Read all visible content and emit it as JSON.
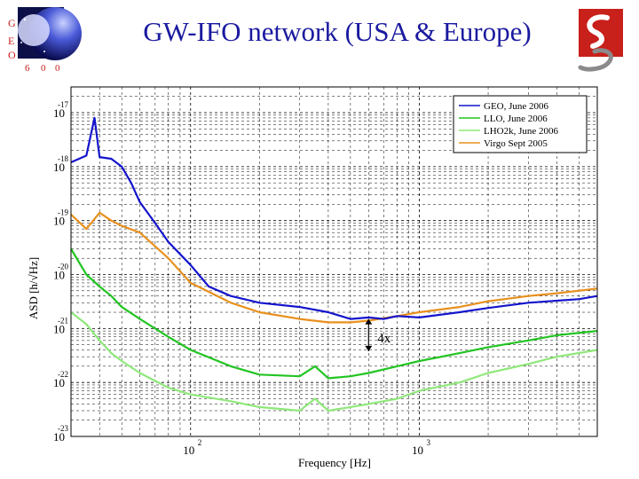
{
  "slide": {
    "title": "GW-IFO network (USA & Europe)",
    "geo_logo_letters": [
      "G",
      "E",
      "O",
      "6",
      "0",
      "0"
    ]
  },
  "colors": {
    "title": "#1a1aa0",
    "geo": "#1414cc",
    "llo": "#22c422",
    "lho2k": "#8fe87a",
    "virgo": "#e8901e",
    "logo_red": "#c8201a"
  },
  "annotation": {
    "label": "4x"
  },
  "chart_data": {
    "type": "line",
    "title": "",
    "xlabel": "Frequency [Hz]",
    "ylabel": "ASD [h/√Hz]",
    "xscale": "log",
    "yscale": "log",
    "xlim": [
      30,
      6000
    ],
    "ylim": [
      1e-23,
      3e-17
    ],
    "grid": true,
    "legend_position": "top-right",
    "x_ticks": [
      {
        "base": "10",
        "exp": "2",
        "value": 100
      },
      {
        "base": "10",
        "exp": "3",
        "value": 1000
      }
    ],
    "y_ticks": [
      {
        "base": "10",
        "exp": "-17",
        "value": 1e-17
      },
      {
        "base": "10",
        "exp": "-18",
        "value": 1e-18
      },
      {
        "base": "10",
        "exp": "-19",
        "value": 1e-19
      },
      {
        "base": "10",
        "exp": "-20",
        "value": 1e-20
      },
      {
        "base": "10",
        "exp": "-21",
        "value": 1e-21
      },
      {
        "base": "10",
        "exp": "-22",
        "value": 1e-22
      },
      {
        "base": "10",
        "exp": "-23",
        "value": 1e-23
      }
    ],
    "series": [
      {
        "name": "GEO, June 2006",
        "color": "#1414cc",
        "x": [
          30,
          35,
          38,
          40,
          45,
          50,
          55,
          60,
          70,
          80,
          100,
          120,
          150,
          200,
          300,
          400,
          500,
          600,
          700,
          800,
          1000,
          1500,
          2000,
          3000,
          5000,
          6000
        ],
        "y": [
          1.2e-18,
          1.6e-18,
          8e-18,
          1.5e-18,
          1.4e-18,
          1e-18,
          5e-19,
          2.2e-19,
          9e-20,
          4e-20,
          1.5e-20,
          6e-21,
          4e-21,
          3e-21,
          2.5e-21,
          2e-21,
          1.5e-21,
          1.6e-21,
          1.5e-21,
          1.7e-21,
          1.6e-21,
          2e-21,
          2.4e-21,
          3e-21,
          3.5e-21,
          4e-21
        ]
      },
      {
        "name": "LLO, June 2006",
        "color": "#22c422",
        "x": [
          30,
          35,
          40,
          45,
          50,
          60,
          80,
          100,
          150,
          200,
          300,
          350,
          400,
          500,
          600,
          800,
          1000,
          1500,
          2000,
          3000,
          4000,
          6000
        ],
        "y": [
          3e-20,
          1e-20,
          6e-21,
          4e-21,
          2.5e-21,
          1.5e-21,
          7e-22,
          4e-22,
          2e-22,
          1.4e-22,
          1.3e-22,
          2e-22,
          1.2e-22,
          1.3e-22,
          1.5e-22,
          2e-22,
          2.5e-22,
          3.5e-22,
          4.5e-22,
          6e-22,
          7.5e-22,
          9e-22
        ]
      },
      {
        "name": "LHO2k, June 2006",
        "color": "#8fe87a",
        "x": [
          30,
          35,
          40,
          45,
          50,
          60,
          80,
          100,
          150,
          200,
          300,
          350,
          400,
          500,
          600,
          800,
          1000,
          1500,
          2000,
          3000,
          4000,
          6000
        ],
        "y": [
          2e-21,
          1.2e-21,
          6e-22,
          3.5e-22,
          2.5e-22,
          1.5e-22,
          8e-23,
          6e-23,
          4.5e-23,
          3.5e-23,
          3e-23,
          5e-23,
          3e-23,
          3.5e-23,
          4e-23,
          5e-23,
          7e-23,
          1e-22,
          1.5e-22,
          2.2e-22,
          3e-22,
          4e-22
        ]
      },
      {
        "name": "Virgo Sept 2005",
        "color": "#e8901e",
        "x": [
          30,
          35,
          40,
          45,
          50,
          60,
          80,
          100,
          150,
          200,
          300,
          400,
          500,
          600,
          800,
          1000,
          1500,
          2000,
          3000,
          4000,
          6000
        ],
        "y": [
          1.3e-19,
          7e-20,
          1.4e-19,
          1e-19,
          8e-20,
          6e-20,
          2e-20,
          7e-21,
          3e-21,
          2e-21,
          1.5e-21,
          1.3e-21,
          1.3e-21,
          1.4e-21,
          1.7e-21,
          2e-21,
          2.5e-21,
          3.2e-21,
          4e-21,
          4.5e-21,
          5.5e-21
        ]
      }
    ]
  }
}
